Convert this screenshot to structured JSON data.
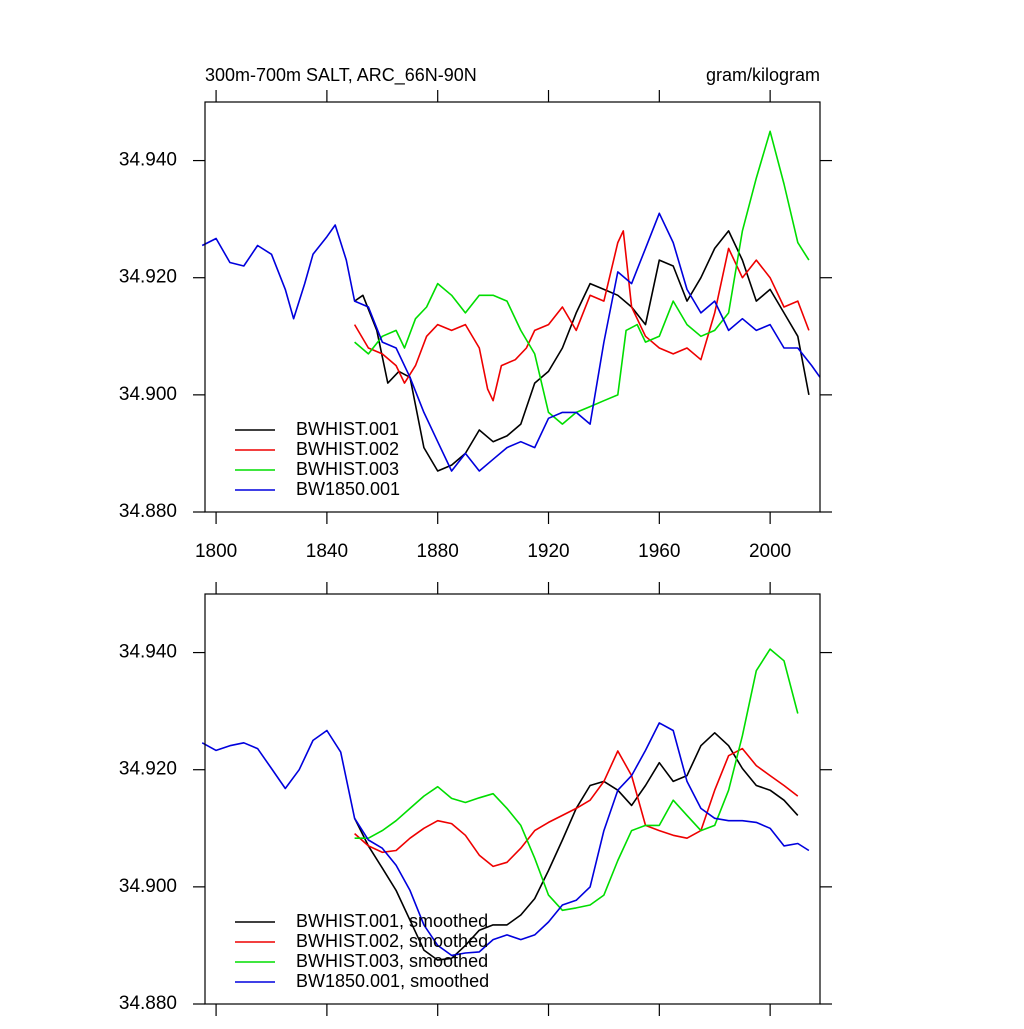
{
  "chart_data": [
    {
      "type": "line",
      "title": "300m-700m SALT, ARC_66N-90N",
      "units_label": "gram/kilogram",
      "xlim": [
        1796,
        2018
      ],
      "xticks": [
        1800,
        1840,
        1880,
        1920,
        1960,
        2000
      ],
      "ylim": [
        34.88,
        34.95
      ],
      "yticks": [
        {
          "value": 34.88,
          "label": "34.880"
        },
        {
          "value": 34.9,
          "label": "34.900"
        },
        {
          "value": 34.92,
          "label": "34.920"
        },
        {
          "value": 34.94,
          "label": "34.940"
        }
      ],
      "legend": "lower left",
      "series": [
        {
          "name": "BWHIST.001",
          "color": "#000000",
          "x": [
            1850,
            1853,
            1858,
            1862,
            1866,
            1870,
            1875,
            1880,
            1885,
            1890,
            1895,
            1900,
            1905,
            1910,
            1915,
            1920,
            1925,
            1930,
            1935,
            1940,
            1945,
            1950,
            1955,
            1960,
            1965,
            1970,
            1975,
            1980,
            1985,
            1990,
            1995,
            2000,
            2005,
            2010,
            2014
          ],
          "values": [
            34.916,
            34.917,
            34.911,
            34.902,
            34.904,
            34.903,
            34.891,
            34.887,
            34.888,
            34.89,
            34.894,
            34.892,
            34.893,
            34.895,
            34.902,
            34.904,
            34.908,
            34.914,
            34.919,
            34.918,
            34.917,
            34.915,
            34.912,
            34.923,
            34.922,
            34.916,
            34.92,
            34.925,
            34.928,
            34.923,
            34.916,
            34.918,
            34.914,
            34.91,
            34.9
          ]
        },
        {
          "name": "BWHIST.002",
          "color": "#ee0000",
          "x": [
            1850,
            1855,
            1860,
            1865,
            1868,
            1872,
            1876,
            1880,
            1885,
            1890,
            1895,
            1898,
            1900,
            1903,
            1908,
            1912,
            1915,
            1920,
            1925,
            1930,
            1935,
            1940,
            1945,
            1947,
            1950,
            1955,
            1960,
            1965,
            1970,
            1975,
            1980,
            1985,
            1990,
            1995,
            2000,
            2005,
            2010,
            2014
          ],
          "values": [
            34.912,
            34.908,
            34.907,
            34.905,
            34.902,
            34.905,
            34.91,
            34.912,
            34.911,
            34.912,
            34.908,
            34.901,
            34.899,
            34.905,
            34.906,
            34.908,
            34.911,
            34.912,
            34.915,
            34.911,
            34.917,
            34.916,
            34.926,
            34.928,
            34.915,
            34.91,
            34.908,
            34.907,
            34.908,
            34.906,
            34.914,
            34.925,
            34.92,
            34.923,
            34.92,
            34.915,
            34.916,
            34.911
          ]
        },
        {
          "name": "BWHIST.003",
          "color": "#00dd00",
          "x": [
            1850,
            1855,
            1860,
            1865,
            1868,
            1872,
            1876,
            1880,
            1885,
            1890,
            1895,
            1900,
            1905,
            1910,
            1915,
            1920,
            1925,
            1930,
            1935,
            1940,
            1945,
            1948,
            1952,
            1955,
            1960,
            1965,
            1970,
            1975,
            1980,
            1985,
            1990,
            1995,
            2000,
            2005,
            2010,
            2014
          ],
          "values": [
            34.909,
            34.907,
            34.91,
            34.911,
            34.908,
            34.913,
            34.915,
            34.919,
            34.917,
            34.914,
            34.917,
            34.917,
            34.916,
            34.911,
            34.907,
            34.897,
            34.895,
            34.897,
            34.898,
            34.899,
            34.9,
            34.911,
            34.912,
            34.909,
            34.91,
            34.916,
            34.912,
            34.91,
            34.911,
            34.914,
            34.928,
            34.937,
            34.945,
            34.936,
            34.926,
            34.923
          ]
        },
        {
          "name": "BW1850.001",
          "color": "#0000dd",
          "x": [
            1795,
            1800,
            1805,
            1810,
            1815,
            1820,
            1825,
            1828,
            1832,
            1835,
            1840,
            1843,
            1847,
            1850,
            1855,
            1860,
            1865,
            1870,
            1875,
            1880,
            1885,
            1890,
            1895,
            1900,
            1905,
            1910,
            1915,
            1920,
            1925,
            1930,
            1935,
            1940,
            1945,
            1950,
            1955,
            1960,
            1965,
            1970,
            1975,
            1980,
            1985,
            1990,
            1995,
            2000,
            2005,
            2010,
            2015,
            2018
          ],
          "values": [
            34.9255,
            34.9267,
            34.9226,
            34.922,
            34.9255,
            34.924,
            34.918,
            34.913,
            34.919,
            34.924,
            34.927,
            34.929,
            34.923,
            34.916,
            34.915,
            34.909,
            34.908,
            34.903,
            34.897,
            34.892,
            34.887,
            34.89,
            34.887,
            34.889,
            34.891,
            34.892,
            34.891,
            34.896,
            34.897,
            34.897,
            34.895,
            34.909,
            34.921,
            34.919,
            34.925,
            34.931,
            34.926,
            34.918,
            34.914,
            34.916,
            34.911,
            34.913,
            34.911,
            34.912,
            34.908,
            34.908,
            34.905,
            34.903
          ]
        }
      ]
    },
    {
      "type": "line",
      "xlim": [
        1796,
        2018
      ],
      "xticks": [
        1800,
        1840,
        1880,
        1920,
        1960,
        2000
      ],
      "ylim": [
        34.88,
        34.95
      ],
      "yticks": [
        {
          "value": 34.88,
          "label": "34.880"
        },
        {
          "value": 34.9,
          "label": "34.900"
        },
        {
          "value": 34.92,
          "label": "34.920"
        },
        {
          "value": 34.94,
          "label": "34.940"
        }
      ],
      "legend": "lower left",
      "series": [
        {
          "name": "BWHIST.001, smoothed",
          "color": "#000000",
          "x": [
            1850,
            1855,
            1860,
            1865,
            1870,
            1875,
            1880,
            1885,
            1890,
            1895,
            1900,
            1905,
            1910,
            1915,
            1920,
            1925,
            1930,
            1935,
            1940,
            1945,
            1950,
            1955,
            1960,
            1965,
            1970,
            1975,
            1980,
            1985,
            1990,
            1995,
            2000,
            2005,
            2010
          ],
          "values": [
            34.9117,
            34.907,
            34.9032,
            34.8994,
            34.8943,
            34.8892,
            34.8875,
            34.8878,
            34.89,
            34.8926,
            34.8935,
            34.8935,
            34.8952,
            34.898,
            34.9028,
            34.908,
            34.9134,
            34.9173,
            34.918,
            34.9165,
            34.9139,
            34.9173,
            34.9212,
            34.918,
            34.919,
            34.9241,
            34.9263,
            34.9241,
            34.9202,
            34.9173,
            34.9165,
            34.9148,
            34.9122
          ]
        },
        {
          "name": "BWHIST.002, smoothed",
          "color": "#ee0000",
          "x": [
            1850,
            1855,
            1860,
            1865,
            1870,
            1875,
            1880,
            1885,
            1890,
            1895,
            1900,
            1905,
            1910,
            1915,
            1920,
            1925,
            1930,
            1935,
            1940,
            1945,
            1950,
            1955,
            1960,
            1965,
            1970,
            1975,
            1980,
            1985,
            1990,
            1995,
            2000,
            2005,
            2010
          ],
          "values": [
            34.9091,
            34.907,
            34.9059,
            34.9062,
            34.9083,
            34.91,
            34.9113,
            34.9108,
            34.9088,
            34.9054,
            34.9035,
            34.9042,
            34.9066,
            34.9096,
            34.911,
            34.9122,
            34.9134,
            34.9148,
            34.918,
            34.9232,
            34.919,
            34.9105,
            34.9096,
            34.9088,
            34.9083,
            34.9096,
            34.9165,
            34.9224,
            34.9236,
            34.9207,
            34.919,
            34.9173,
            34.9155
          ]
        },
        {
          "name": "BWHIST.003, smoothed",
          "color": "#00dd00",
          "x": [
            1850,
            1855,
            1860,
            1865,
            1870,
            1875,
            1880,
            1885,
            1890,
            1895,
            1900,
            1905,
            1910,
            1915,
            1920,
            1925,
            1930,
            1935,
            1940,
            1945,
            1950,
            1955,
            1960,
            1965,
            1970,
            1975,
            1980,
            1985,
            1990,
            1995,
            2000,
            2005,
            2010
          ],
          "values": [
            34.9083,
            34.9083,
            34.9096,
            34.9113,
            34.9134,
            34.9155,
            34.9171,
            34.9151,
            34.9144,
            34.9152,
            34.9159,
            34.9134,
            34.9105,
            34.9049,
            34.8986,
            34.896,
            34.8964,
            34.8969,
            34.8986,
            34.9045,
            34.9096,
            34.9105,
            34.9105,
            34.9148,
            34.9122,
            34.9096,
            34.9105,
            34.9165,
            34.9258,
            34.9369,
            34.9406,
            34.9386,
            34.9296
          ]
        },
        {
          "name": "BW1850.001, smoothed",
          "color": "#0000dd",
          "x": [
            1795,
            1800,
            1805,
            1810,
            1815,
            1820,
            1825,
            1830,
            1835,
            1840,
            1845,
            1850,
            1855,
            1860,
            1865,
            1870,
            1875,
            1880,
            1885,
            1890,
            1895,
            1900,
            1905,
            1910,
            1915,
            1920,
            1925,
            1930,
            1935,
            1940,
            1945,
            1950,
            1955,
            1960,
            1965,
            1970,
            1975,
            1980,
            1985,
            1990,
            1995,
            2000,
            2005,
            2010,
            2014
          ],
          "values": [
            34.9246,
            34.9233,
            34.9241,
            34.9246,
            34.9236,
            34.9202,
            34.9168,
            34.92,
            34.925,
            34.9267,
            34.923,
            34.9117,
            34.908,
            34.9066,
            34.9037,
            34.8994,
            34.8935,
            34.89,
            34.8883,
            34.8887,
            34.8889,
            34.891,
            34.8918,
            34.891,
            34.8918,
            34.894,
            34.8969,
            34.8977,
            34.9,
            34.9096,
            34.9165,
            34.919,
            34.9233,
            34.928,
            34.9267,
            34.918,
            34.9134,
            34.9117,
            34.9113,
            34.9113,
            34.911,
            34.91,
            34.907,
            34.9074,
            34.9062
          ]
        }
      ]
    }
  ]
}
